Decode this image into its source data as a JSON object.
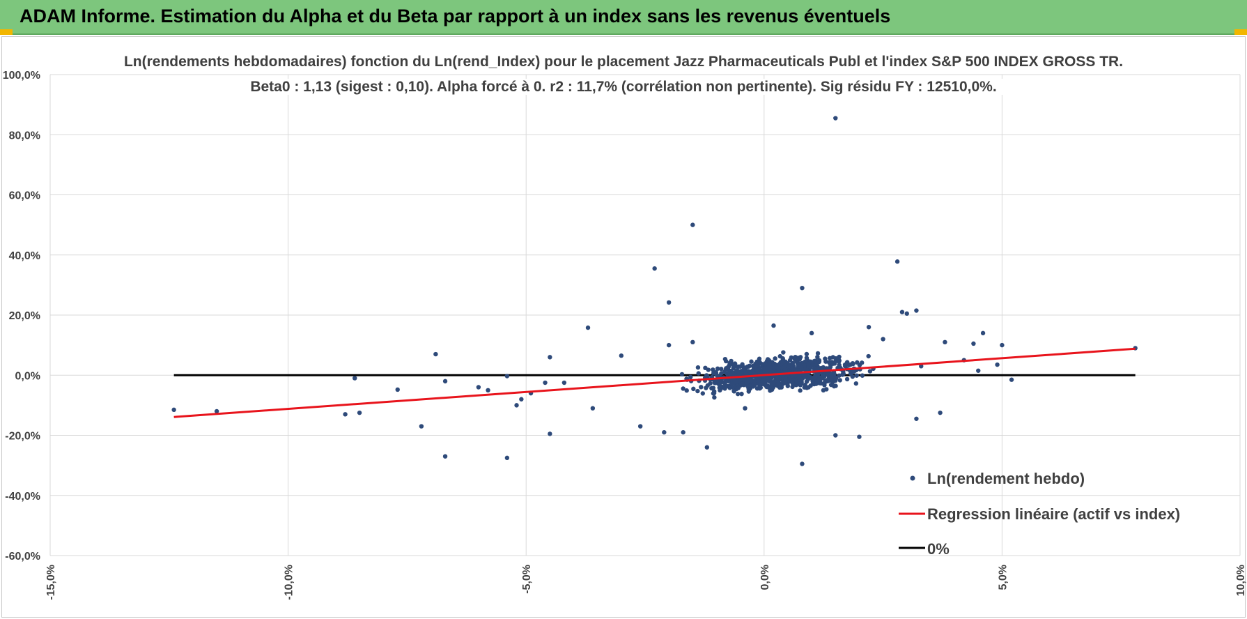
{
  "banner": {
    "title": "ADAM Informe. Estimation du Alpha et du Beta par rapport à un index sans les revenus éventuels"
  },
  "colors": {
    "banner": "#7dc67d",
    "points": "#2e4a7a",
    "regression": "#e8141c",
    "zero": "#000000",
    "grid": "#d9d9d9"
  },
  "chart_data": {
    "type": "scatter",
    "title": "Ln(rendements hebdomadaires) fonction du Ln(rend_Index) pour le placement Jazz Pharmaceuticals Publ et l'index S&P 500 INDEX GROSS TR.",
    "subtitle": "Beta0 : 1,13  (sigest : 0,10).  Alpha forcé à 0. r2 : 11,7% (corrélation non pertinente). Sig résidu FY : 12510,0%.",
    "xlabel": "",
    "ylabel": "",
    "xlim": [
      -15,
      10
    ],
    "ylim": [
      -60,
      100
    ],
    "x_ticks": [
      "-15,0%",
      "-10,0%",
      "-5,0%",
      "0,0%",
      "5,0%",
      "10,0%"
    ],
    "y_ticks": [
      "100,0%",
      "80,0%",
      "60,0%",
      "40,0%",
      "20,0%",
      "0,0%",
      "-20,0%",
      "-40,0%",
      "-60,0%"
    ],
    "grid": true,
    "legend_position": "bottom-right",
    "series": [
      {
        "name": "Ln(rendement hebdo)",
        "type": "scatter",
        "outliers": [
          [
            -12.4,
            -11.5
          ],
          [
            -11.5,
            -12
          ],
          [
            -8.6,
            -1
          ],
          [
            -8.8,
            -13
          ],
          [
            -8.5,
            -12.5
          ],
          [
            -7.7,
            -4.8
          ],
          [
            -7.2,
            -17
          ],
          [
            -6.9,
            7
          ],
          [
            -6.7,
            -2
          ],
          [
            -6.7,
            -27
          ],
          [
            -6.0,
            -4
          ],
          [
            -5.8,
            -5
          ],
          [
            -5.4,
            -27.5
          ],
          [
            -5.4,
            -0.3
          ],
          [
            -5.2,
            -10
          ],
          [
            -5.1,
            -8
          ],
          [
            -4.9,
            -6
          ],
          [
            -4.6,
            -2.5
          ],
          [
            -4.5,
            -19.5
          ],
          [
            -4.5,
            6
          ],
          [
            -4.2,
            -2.5
          ],
          [
            -3.7,
            15.8
          ],
          [
            -3.6,
            -11
          ],
          [
            -3.0,
            6.5
          ],
          [
            -2.6,
            -17
          ],
          [
            -2.3,
            35.5
          ],
          [
            -2.1,
            -19
          ],
          [
            -2.0,
            24.2
          ],
          [
            -2.0,
            10
          ],
          [
            -1.7,
            -19
          ],
          [
            -1.5,
            50
          ],
          [
            -1.5,
            11
          ],
          [
            -1.2,
            -24
          ],
          [
            -0.4,
            -11
          ],
          [
            0.2,
            16.5
          ],
          [
            0.8,
            29
          ],
          [
            0.8,
            -29.5
          ],
          [
            1.0,
            14
          ],
          [
            1.5,
            85.5
          ],
          [
            1.5,
            -20
          ],
          [
            2.0,
            -20.5
          ],
          [
            2.2,
            16
          ],
          [
            2.5,
            12
          ],
          [
            2.8,
            37.8
          ],
          [
            2.9,
            21
          ],
          [
            3.0,
            20.5
          ],
          [
            3.2,
            21.5
          ],
          [
            3.2,
            -14.5
          ],
          [
            3.3,
            3
          ],
          [
            3.7,
            -12.5
          ],
          [
            3.8,
            11
          ],
          [
            4.2,
            5
          ],
          [
            4.4,
            10.5
          ],
          [
            4.5,
            1.5
          ],
          [
            4.6,
            14
          ],
          [
            4.9,
            3.5
          ],
          [
            5.0,
            10
          ],
          [
            5.2,
            -1.5
          ],
          [
            7.8,
            9
          ]
        ],
        "cluster": {
          "count": 900,
          "x_center": 0.3,
          "x_spread": 1.3,
          "y_spread": 4.5,
          "beta": 1.13
        }
      },
      {
        "name": "Regression linéaire (actif vs index)",
        "type": "line",
        "x": [
          -12.4,
          7.8
        ],
        "y": [
          -13.9,
          8.8
        ]
      },
      {
        "name": "0%",
        "type": "line",
        "x": [
          -12.4,
          7.8
        ],
        "y": [
          0,
          0
        ]
      }
    ]
  }
}
